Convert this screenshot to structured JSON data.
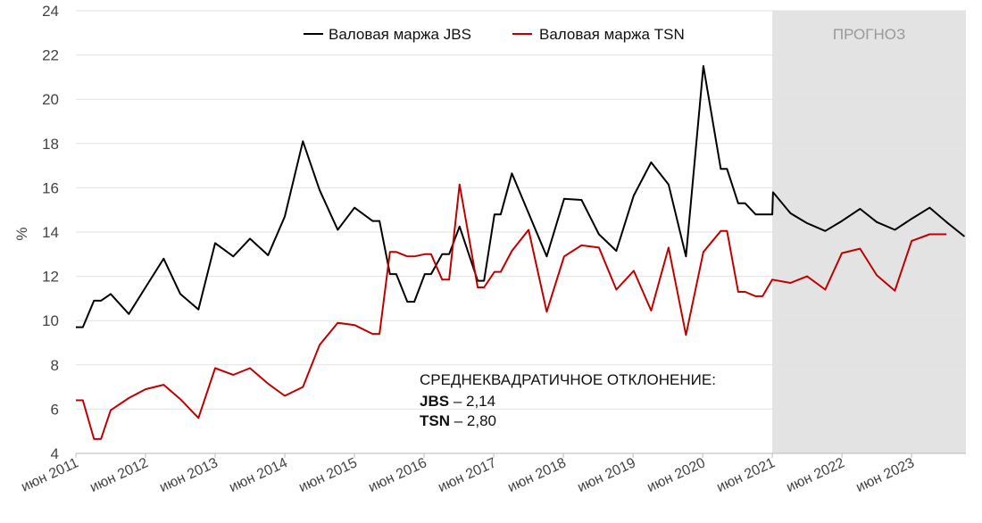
{
  "chart_data": {
    "type": "line",
    "title": "",
    "xlabel": "",
    "ylabel": "%",
    "ylim": [
      4,
      24
    ],
    "yticks": [
      "4",
      "6",
      "8",
      "10",
      "12",
      "14",
      "16",
      "18",
      "20",
      "22",
      "24"
    ],
    "xlim": [
      2011.5,
      2024.28
    ],
    "xticks": [
      "июн 2011",
      "июн 2012",
      "июн 2013",
      "июн 2014",
      "июн 2015",
      "июн 2016",
      "июн 2017",
      "июн 2018",
      "июн 2019",
      "июн 2020",
      "июн 2021",
      "июн 2022",
      "июн 2023"
    ],
    "forecast": {
      "label": "ПРОГНОЗ",
      "from": 2021.5,
      "to": 2024.28
    },
    "legend_position": "top",
    "series": [
      {
        "name": "Валовая маржа JBS",
        "color": "#000000",
        "x": [
          2011.5,
          2011.6,
          2011.76,
          2011.86,
          2012.0,
          2012.26,
          2012.5,
          2012.76,
          2013.0,
          2013.26,
          2013.5,
          2013.76,
          2014.0,
          2014.26,
          2014.5,
          2014.76,
          2015.0,
          2015.26,
          2015.5,
          2015.76,
          2015.86,
          2016.01,
          2016.1,
          2016.26,
          2016.36,
          2016.51,
          2016.6,
          2016.76,
          2016.86,
          2017.01,
          2017.27,
          2017.36,
          2017.51,
          2017.6,
          2017.76,
          2018.0,
          2018.26,
          2018.51,
          2018.76,
          2019.01,
          2019.26,
          2019.51,
          2019.76,
          2020.01,
          2020.26,
          2020.51,
          2020.76,
          2020.85,
          2021.01,
          2021.11,
          2021.26,
          2021.5,
          2021.51,
          2021.76,
          2022.0,
          2022.26,
          2022.5,
          2022.76,
          2023.0,
          2023.26,
          2023.5,
          2023.76,
          2024.0,
          2024.26
        ],
        "values": [
          9.7,
          9.7,
          10.9,
          10.9,
          11.2,
          10.3,
          11.5,
          12.8,
          11.2,
          10.5,
          13.5,
          12.9,
          13.7,
          12.95,
          14.7,
          18.1,
          15.9,
          14.1,
          15.1,
          14.5,
          14.5,
          12.1,
          12.1,
          10.85,
          10.85,
          12.1,
          12.1,
          13.0,
          13.0,
          14.25,
          11.8,
          11.8,
          14.8,
          14.8,
          16.65,
          14.85,
          12.9,
          15.5,
          15.45,
          13.9,
          13.15,
          15.65,
          17.15,
          16.15,
          12.9,
          21.5,
          16.85,
          16.85,
          15.3,
          15.3,
          14.8,
          14.8,
          15.8,
          14.85,
          14.4,
          14.05,
          14.5,
          15.05,
          14.45,
          14.1,
          14.6,
          15.1,
          14.45,
          13.8
        ]
      },
      {
        "name": "Валовая маржа TSN",
        "color": "#c00000",
        "x": [
          2011.5,
          2011.6,
          2011.76,
          2011.86,
          2012.0,
          2012.26,
          2012.5,
          2012.76,
          2013.0,
          2013.26,
          2013.5,
          2013.76,
          2014.0,
          2014.26,
          2014.5,
          2014.76,
          2015.0,
          2015.26,
          2015.5,
          2015.76,
          2015.86,
          2016.01,
          2016.1,
          2016.26,
          2016.36,
          2016.51,
          2016.6,
          2016.76,
          2016.86,
          2017.01,
          2017.27,
          2017.36,
          2017.51,
          2017.6,
          2017.76,
          2018.0,
          2018.26,
          2018.51,
          2018.76,
          2019.01,
          2019.26,
          2019.51,
          2019.76,
          2020.01,
          2020.26,
          2020.51,
          2020.76,
          2020.85,
          2021.01,
          2021.11,
          2021.26,
          2021.36,
          2021.5,
          2021.76,
          2022.0,
          2022.26,
          2022.5,
          2022.76,
          2023.0,
          2023.26,
          2023.5,
          2023.76,
          2024.0
        ],
        "values": [
          6.4,
          6.4,
          4.65,
          4.65,
          5.95,
          6.5,
          6.9,
          7.1,
          6.45,
          5.6,
          7.85,
          7.55,
          7.85,
          7.15,
          6.6,
          7.0,
          8.9,
          9.9,
          9.8,
          9.4,
          9.4,
          13.1,
          13.1,
          12.9,
          12.9,
          13.0,
          13.0,
          11.85,
          11.85,
          16.15,
          11.5,
          11.5,
          12.2,
          12.2,
          13.15,
          14.1,
          10.4,
          12.9,
          13.4,
          13.3,
          11.4,
          12.25,
          10.45,
          13.3,
          9.35,
          13.1,
          14.05,
          14.05,
          11.3,
          11.3,
          11.1,
          11.1,
          11.85,
          11.7,
          12.0,
          11.4,
          13.05,
          13.25,
          12.05,
          11.35,
          13.6,
          13.9,
          13.9
        ]
      }
    ],
    "annotation": {
      "title": "СРЕДНЕКВАДРАТИЧНОЕ ОТКЛОНЕНИЕ:",
      "lines": [
        {
          "name": "JBS",
          "value": "– 2,14"
        },
        {
          "name": "TSN",
          "value": "– 2,80"
        }
      ]
    }
  }
}
